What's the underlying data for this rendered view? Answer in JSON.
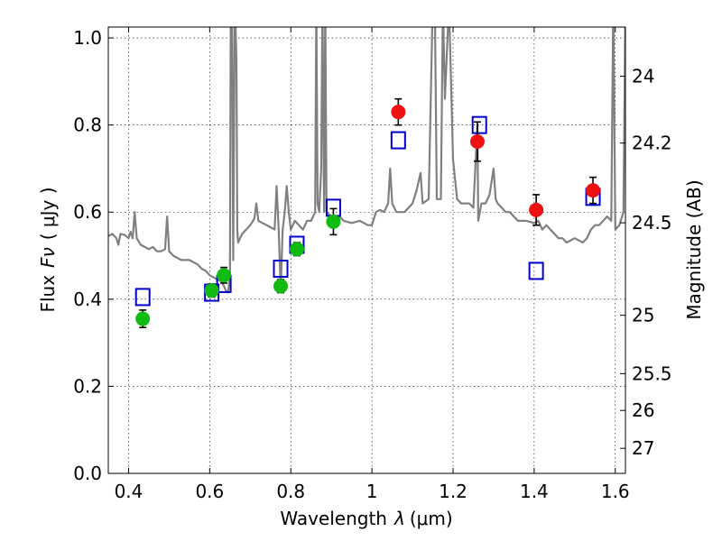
{
  "chart_data": {
    "type": "scatter",
    "xlabel": "Wavelength",
    "xlabel_symbol": "λ",
    "xlabel_unit": "(μm)",
    "ylabel": "Flux",
    "ylabel_symbol": "Fν",
    "ylabel_unit": "( μJy )",
    "y2label": "Magnitude (AB)",
    "xlim": [
      0.35,
      1.625
    ],
    "ylim": [
      0.0,
      1.025
    ],
    "grid": true,
    "x_ticks": [
      {
        "value": 0.4,
        "label": "0.4"
      },
      {
        "value": 0.6,
        "label": "0.6"
      },
      {
        "value": 0.8,
        "label": "0.8"
      },
      {
        "value": 1.0,
        "label": "1"
      },
      {
        "value": 1.2,
        "label": "1.2"
      },
      {
        "value": 1.4,
        "label": "1.4"
      },
      {
        "value": 1.6,
        "label": "1.6"
      }
    ],
    "y_ticks": [
      {
        "value": 0.0,
        "label": "0.0"
      },
      {
        "value": 0.2,
        "label": "0.2"
      },
      {
        "value": 0.4,
        "label": "0.4"
      },
      {
        "value": 0.6,
        "label": "0.6"
      },
      {
        "value": 0.8,
        "label": "0.8"
      },
      {
        "value": 1.0,
        "label": "1.0"
      }
    ],
    "y2_ticks": [
      {
        "value": 24,
        "label": "24"
      },
      {
        "value": 24.2,
        "label": "24.2"
      },
      {
        "value": 24.5,
        "label": "24.5"
      },
      {
        "value": 25,
        "label": "25"
      },
      {
        "value": 25.5,
        "label": "25.5"
      },
      {
        "value": 26,
        "label": "26"
      },
      {
        "value": 27,
        "label": "27"
      }
    ],
    "series": [
      {
        "role": "model-spectrum",
        "color": "#808080",
        "points": [
          [
            0.35,
            0.545
          ],
          [
            0.36,
            0.55
          ],
          [
            0.37,
            0.54
          ],
          [
            0.375,
            0.525
          ],
          [
            0.38,
            0.55
          ],
          [
            0.39,
            0.548
          ],
          [
            0.4,
            0.54
          ],
          [
            0.405,
            0.555
          ],
          [
            0.41,
            0.54
          ],
          [
            0.415,
            0.6
          ],
          [
            0.42,
            0.54
          ],
          [
            0.43,
            0.525
          ],
          [
            0.44,
            0.52
          ],
          [
            0.45,
            0.515
          ],
          [
            0.46,
            0.52
          ],
          [
            0.47,
            0.51
          ],
          [
            0.48,
            0.51
          ],
          [
            0.49,
            0.515
          ],
          [
            0.495,
            0.59
          ],
          [
            0.5,
            0.51
          ],
          [
            0.51,
            0.5
          ],
          [
            0.52,
            0.495
          ],
          [
            0.53,
            0.49
          ],
          [
            0.54,
            0.49
          ],
          [
            0.55,
            0.49
          ],
          [
            0.56,
            0.485
          ],
          [
            0.57,
            0.48
          ],
          [
            0.58,
            0.47
          ],
          [
            0.59,
            0.465
          ],
          [
            0.6,
            0.455
          ],
          [
            0.61,
            0.45
          ],
          [
            0.62,
            0.445
          ],
          [
            0.63,
            0.44
          ],
          [
            0.64,
            0.42
          ],
          [
            0.645,
            0.415
          ],
          [
            0.65,
            0.45
          ],
          [
            0.652,
            1.08
          ],
          [
            0.655,
            1.08
          ],
          [
            0.658,
            0.49
          ],
          [
            0.662,
            1.08
          ],
          [
            0.666,
            0.95
          ],
          [
            0.668,
            0.56
          ],
          [
            0.67,
            0.53
          ],
          [
            0.675,
            0.54
          ],
          [
            0.68,
            0.55
          ],
          [
            0.69,
            0.56
          ],
          [
            0.7,
            0.57
          ],
          [
            0.71,
            0.585
          ],
          [
            0.715,
            0.62
          ],
          [
            0.72,
            0.58
          ],
          [
            0.73,
            0.575
          ],
          [
            0.74,
            0.57
          ],
          [
            0.75,
            0.565
          ],
          [
            0.76,
            0.56
          ],
          [
            0.765,
            0.66
          ],
          [
            0.77,
            0.56
          ],
          [
            0.775,
            0.42
          ],
          [
            0.78,
            0.56
          ],
          [
            0.785,
            0.6
          ],
          [
            0.79,
            0.66
          ],
          [
            0.795,
            0.6
          ],
          [
            0.8,
            0.56
          ],
          [
            0.81,
            0.58
          ],
          [
            0.82,
            0.57
          ],
          [
            0.83,
            0.56
          ],
          [
            0.84,
            0.58
          ],
          [
            0.85,
            0.58
          ],
          [
            0.86,
            0.6
          ],
          [
            0.863,
            1.08
          ],
          [
            0.866,
            0.62
          ],
          [
            0.87,
            0.6
          ],
          [
            0.875,
            0.7
          ],
          [
            0.878,
            1.08
          ],
          [
            0.882,
            0.6
          ],
          [
            0.885,
            1.08
          ],
          [
            0.888,
            0.6
          ],
          [
            0.9,
            0.59
          ],
          [
            0.91,
            0.58
          ],
          [
            0.92,
            0.59
          ],
          [
            0.93,
            0.58
          ],
          [
            0.95,
            0.575
          ],
          [
            0.97,
            0.58
          ],
          [
            0.99,
            0.57
          ],
          [
            1.0,
            0.57
          ],
          [
            1.01,
            0.6
          ],
          [
            1.02,
            0.605
          ],
          [
            1.03,
            0.6
          ],
          [
            1.04,
            0.62
          ],
          [
            1.045,
            0.7
          ],
          [
            1.05,
            0.62
          ],
          [
            1.06,
            0.6
          ],
          [
            1.08,
            0.6
          ],
          [
            1.09,
            0.61
          ],
          [
            1.1,
            0.62
          ],
          [
            1.11,
            0.65
          ],
          [
            1.12,
            0.69
          ],
          [
            1.125,
            0.62
          ],
          [
            1.14,
            0.63
          ],
          [
            1.15,
            1.08
          ],
          [
            1.155,
            1.08
          ],
          [
            1.16,
            0.63
          ],
          [
            1.17,
            0.63
          ],
          [
            1.175,
            1.08
          ],
          [
            1.18,
            0.86
          ],
          [
            1.19,
            1.08
          ],
          [
            1.2,
            0.72
          ],
          [
            1.21,
            0.63
          ],
          [
            1.22,
            0.62
          ],
          [
            1.24,
            0.62
          ],
          [
            1.25,
            0.61
          ],
          [
            1.26,
            0.8
          ],
          [
            1.262,
            0.58
          ],
          [
            1.27,
            0.62
          ],
          [
            1.28,
            0.62
          ],
          [
            1.29,
            0.64
          ],
          [
            1.3,
            0.7
          ],
          [
            1.305,
            0.63
          ],
          [
            1.31,
            0.62
          ],
          [
            1.32,
            0.61
          ],
          [
            1.33,
            0.6
          ],
          [
            1.34,
            0.6
          ],
          [
            1.35,
            0.59
          ],
          [
            1.36,
            0.58
          ],
          [
            1.38,
            0.58
          ],
          [
            1.4,
            0.575
          ],
          [
            1.41,
            0.58
          ],
          [
            1.42,
            0.56
          ],
          [
            1.43,
            0.57
          ],
          [
            1.44,
            0.56
          ],
          [
            1.45,
            0.55
          ],
          [
            1.46,
            0.54
          ],
          [
            1.47,
            0.54
          ],
          [
            1.48,
            0.53
          ],
          [
            1.5,
            0.54
          ],
          [
            1.52,
            0.53
          ],
          [
            1.53,
            0.54
          ],
          [
            1.54,
            0.56
          ],
          [
            1.55,
            0.57
          ],
          [
            1.56,
            0.57
          ],
          [
            1.57,
            0.58
          ],
          [
            1.58,
            0.59
          ],
          [
            1.59,
            0.58
          ],
          [
            1.595,
            1.08
          ],
          [
            1.6,
            0.56
          ],
          [
            1.61,
            0.57
          ],
          [
            1.62,
            0.6
          ],
          [
            1.625,
            1.08
          ]
        ]
      },
      {
        "role": "model-photometry",
        "marker": "open-square",
        "color": "#0000cc",
        "points": [
          [
            0.435,
            0.405
          ],
          [
            0.605,
            0.415
          ],
          [
            0.635,
            0.435
          ],
          [
            0.775,
            0.47
          ],
          [
            0.815,
            0.525
          ],
          [
            0.905,
            0.61
          ],
          [
            1.065,
            0.765
          ],
          [
            1.265,
            0.8
          ],
          [
            1.405,
            0.465
          ],
          [
            1.545,
            0.635
          ]
        ]
      },
      {
        "role": "observed-green",
        "marker": "filled-circle",
        "color": "#11bb11",
        "points": [
          {
            "x": 0.435,
            "y": 0.355,
            "err": 0.02
          },
          {
            "x": 0.605,
            "y": 0.42,
            "err": 0.015
          },
          {
            "x": 0.635,
            "y": 0.455,
            "err": 0.018
          },
          {
            "x": 0.775,
            "y": 0.43,
            "err": 0.015
          },
          {
            "x": 0.815,
            "y": 0.515,
            "err": 0.015
          },
          {
            "x": 0.905,
            "y": 0.578,
            "err": 0.03
          }
        ]
      },
      {
        "role": "observed-red",
        "marker": "filled-circle",
        "color": "#ee1111",
        "points": [
          {
            "x": 1.065,
            "y": 0.83,
            "err": 0.03
          },
          {
            "x": 1.26,
            "y": 0.762,
            "err": 0.045
          },
          {
            "x": 1.405,
            "y": 0.605,
            "err": 0.035
          },
          {
            "x": 1.545,
            "y": 0.65,
            "err": 0.03
          }
        ]
      }
    ]
  }
}
